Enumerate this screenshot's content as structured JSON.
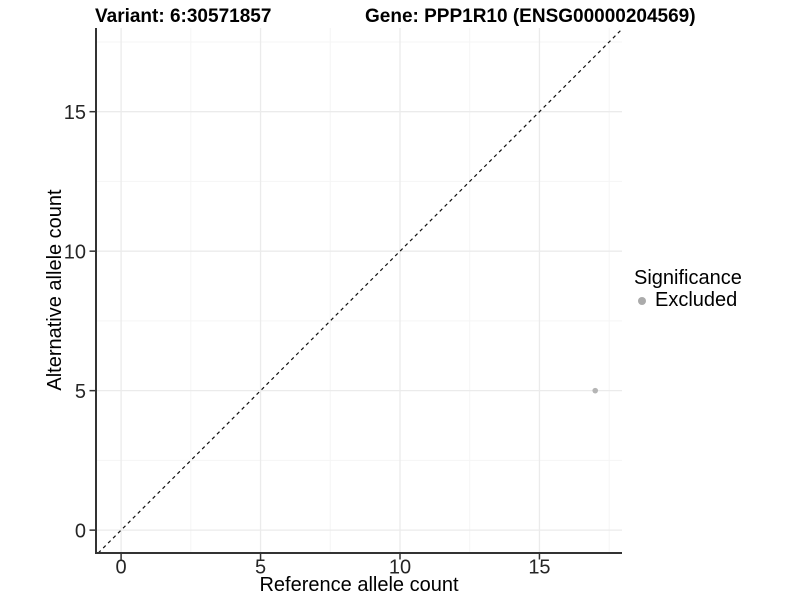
{
  "chart_data": {
    "type": "scatter",
    "titles": {
      "variant": "Variant: 6:30571857",
      "gene": "Gene: PPP1R10 (ENSG00000204569)"
    },
    "xlabel": "Reference allele count",
    "ylabel": "Alternative allele count",
    "xlim": [
      -0.9,
      17.96
    ],
    "ylim": [
      -0.82,
      18.0
    ],
    "x_major_ticks": [
      0,
      5,
      10,
      15
    ],
    "y_major_ticks": [
      0,
      5,
      10,
      15
    ],
    "x_minor_gridlines": [
      2.5,
      7.5,
      12.5,
      17.5
    ],
    "y_minor_gridlines": [
      2.5,
      7.5,
      12.5,
      17.5
    ],
    "grid": "major+minor",
    "identity_line": {
      "style": "dashed",
      "equation": "y = x",
      "from": -0.82,
      "to": 17.96
    },
    "points": [
      {
        "x": 17,
        "y": 5,
        "significance": "Excluded"
      }
    ],
    "point_color": "#B5B5B5",
    "point_radius": 2.8,
    "legend": {
      "title": "Significance",
      "position": "right",
      "items": [
        {
          "label": "Excluded",
          "color": "#ABABAB"
        }
      ]
    },
    "colors": {
      "grid_major": "#EBEBEB",
      "grid_minor": "#F5F5F5",
      "axis_line": "#333333",
      "tick_mark": "#333333",
      "tick_label": "#262626",
      "dashed_line": "#111111",
      "background": "#FFFFFF"
    }
  }
}
